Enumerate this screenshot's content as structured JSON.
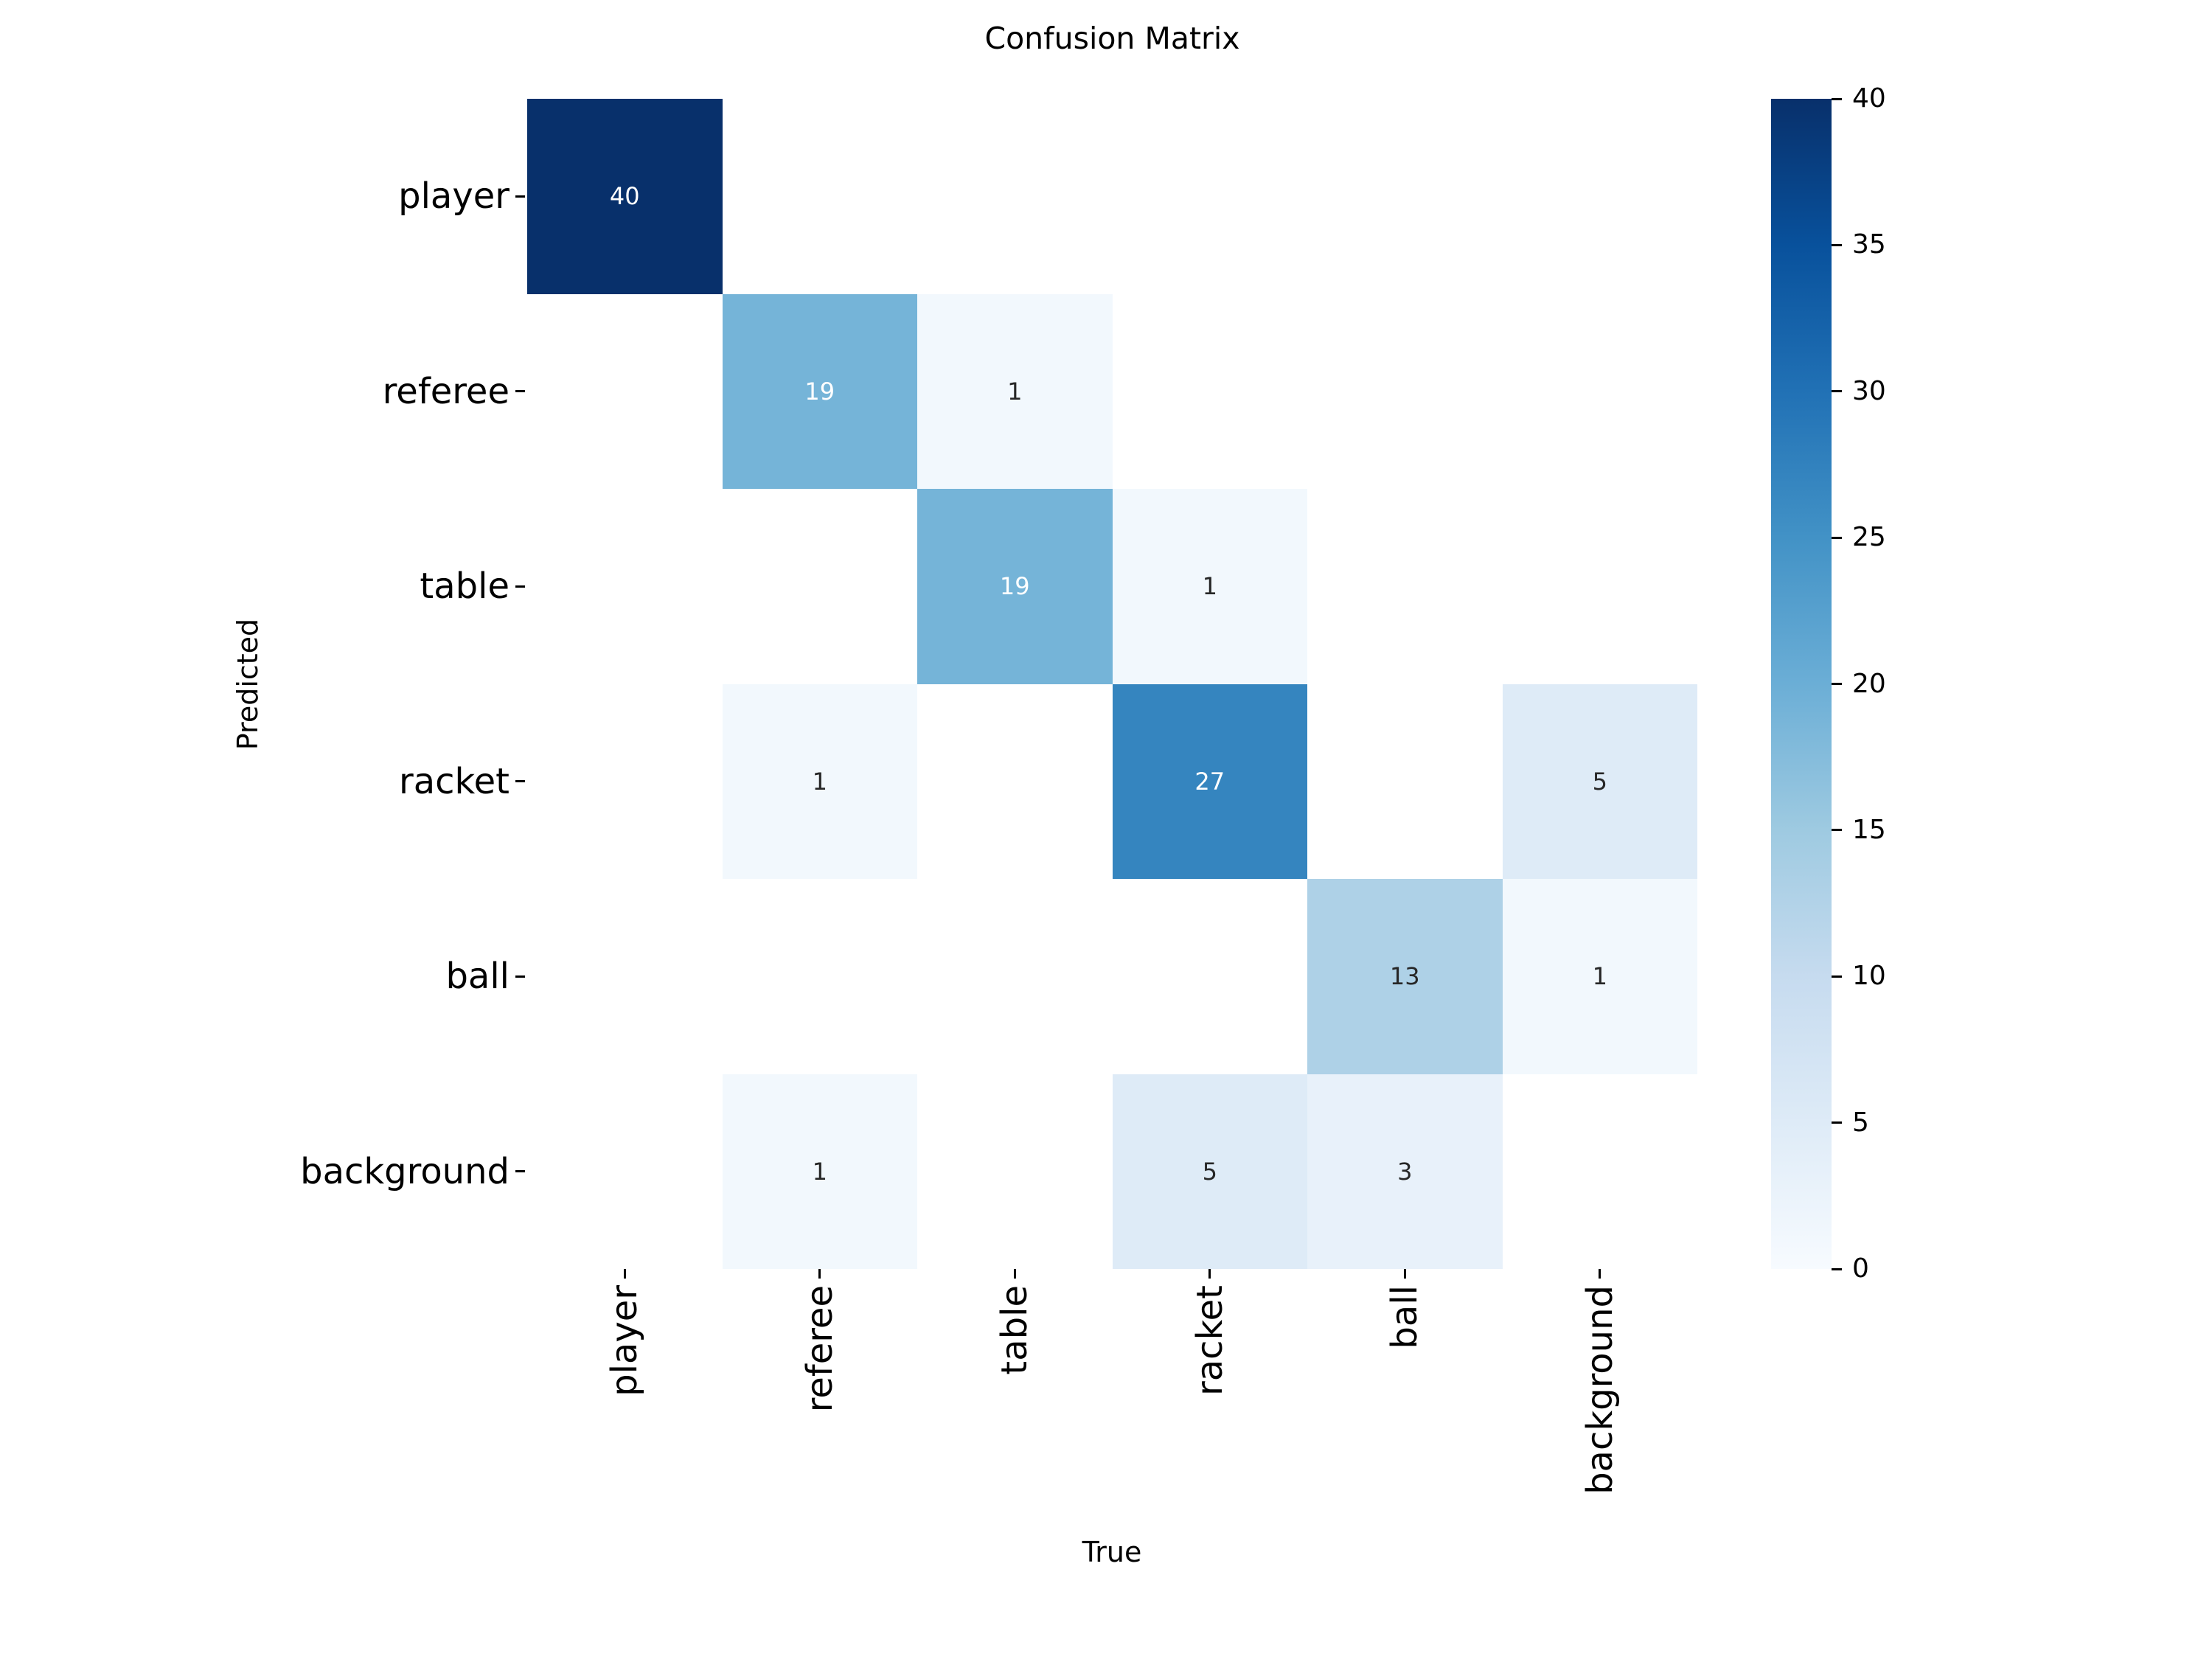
{
  "figure": {
    "title": "Confusion Matrix",
    "xlabel": "True",
    "ylabel": "Predicted"
  },
  "chart_data": {
    "type": "heatmap",
    "title": "Confusion Matrix",
    "xlabel": "True",
    "ylabel": "Predicted",
    "x_categories": [
      "player",
      "referee",
      "table",
      "racket",
      "ball",
      "background"
    ],
    "y_categories": [
      "player",
      "referee",
      "table",
      "racket",
      "ball",
      "background"
    ],
    "matrix": [
      [
        40,
        0,
        0,
        0,
        0,
        0
      ],
      [
        0,
        19,
        1,
        0,
        0,
        0
      ],
      [
        0,
        0,
        19,
        1,
        0,
        0
      ],
      [
        0,
        1,
        0,
        27,
        0,
        5
      ],
      [
        0,
        0,
        0,
        0,
        13,
        1
      ],
      [
        0,
        1,
        0,
        5,
        3,
        0
      ]
    ],
    "vmin": 0,
    "vmax": 40,
    "zero_display": "blank",
    "annot_white_threshold": 19,
    "colormap": "Blues",
    "colorbar": {
      "position": "right",
      "ticks": [
        0,
        5,
        10,
        15,
        20,
        25,
        30,
        35,
        40
      ]
    },
    "grid": false,
    "legend": false
  },
  "colors": {
    "figure_background": "#ffffff",
    "text": "#000000",
    "annot_dark": "#262626",
    "annot_light": "#ffffff",
    "colormap_stops": [
      "#f7fbff",
      "#deebf7",
      "#c6dbef",
      "#9ecae1",
      "#6baed6",
      "#4292c6",
      "#2171b5",
      "#08519c",
      "#08306b"
    ]
  }
}
